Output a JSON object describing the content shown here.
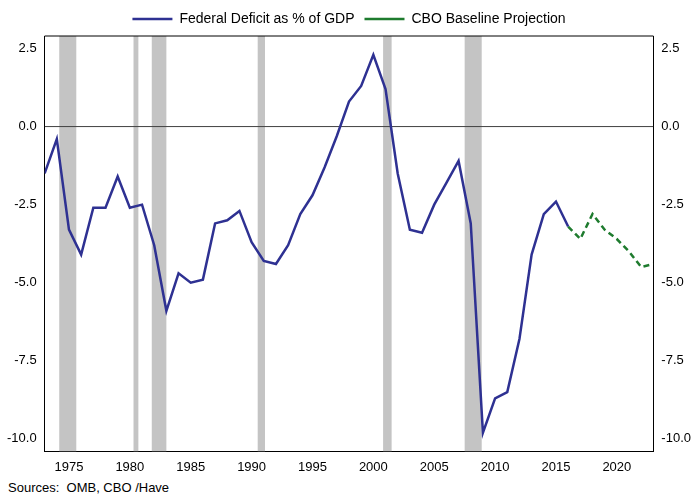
{
  "chart_data": {
    "type": "line",
    "source": "Sources:  OMB, CBO /Have",
    "x": [
      1973,
      1974,
      1975,
      1976,
      1977,
      1978,
      1979,
      1980,
      1981,
      1982,
      1983,
      1984,
      1985,
      1986,
      1987,
      1988,
      1989,
      1990,
      1991,
      1992,
      1993,
      1994,
      1995,
      1996,
      1997,
      1998,
      1999,
      2000,
      2001,
      2002,
      2003,
      2004,
      2005,
      2006,
      2007,
      2008,
      2009,
      2010,
      2011,
      2012,
      2013,
      2014,
      2015,
      2016,
      2017,
      2018,
      2019,
      2020,
      2021,
      2022,
      2023
    ],
    "series": [
      {
        "name": "Federal Deficit as % of GDP",
        "color": "#2e3192",
        "line_style": "solid",
        "values": [
          -1.5,
          -0.4,
          -3.3,
          -4.1,
          -2.6,
          -2.6,
          -1.6,
          -2.6,
          -2.5,
          -3.8,
          -5.9,
          -4.7,
          -5.0,
          -4.9,
          -3.1,
          -3.0,
          -2.7,
          -3.7,
          -4.3,
          -4.4,
          -3.8,
          -2.8,
          -2.2,
          -1.3,
          -0.3,
          0.8,
          1.3,
          2.3,
          1.2,
          -1.5,
          -3.3,
          -3.4,
          -2.5,
          -1.8,
          -1.1,
          -3.1,
          -9.8,
          -8.7,
          -8.5,
          -6.8,
          -4.1,
          -2.8,
          -2.4,
          -3.2,
          null,
          null,
          null,
          null,
          null,
          null,
          null
        ]
      },
      {
        "name": "CBO Baseline Projection",
        "color": "#1e7b2e",
        "line_style": "dashed",
        "values": [
          null,
          null,
          null,
          null,
          null,
          null,
          null,
          null,
          null,
          null,
          null,
          null,
          null,
          null,
          null,
          null,
          null,
          null,
          null,
          null,
          null,
          null,
          null,
          null,
          null,
          null,
          null,
          null,
          null,
          null,
          null,
          null,
          null,
          null,
          null,
          null,
          null,
          null,
          null,
          null,
          null,
          null,
          null,
          -3.2,
          -3.6,
          -2.8,
          -3.3,
          -3.6,
          -4.0,
          -4.5,
          -4.4
        ]
      }
    ],
    "recessions": [
      [
        1974.2,
        1975.6
      ],
      [
        1980.3,
        1980.7
      ],
      [
        1981.8,
        1983.0
      ],
      [
        1990.5,
        1991.1
      ],
      [
        2000.8,
        2001.5
      ],
      [
        2007.5,
        2008.9
      ]
    ],
    "xlim": [
      1973,
      2023
    ],
    "xticks": [
      1975,
      1980,
      1985,
      1990,
      1995,
      2000,
      2005,
      2010,
      2015,
      2020
    ],
    "ylim": [
      -10.4,
      2.9
    ],
    "yticks": [
      {
        "value": -10,
        "label": "-10.0"
      },
      -7.5,
      {
        "value": -5,
        "label": "-5.0"
      },
      -2.5,
      {
        "value": 0,
        "label": "0.0"
      },
      2.5
    ],
    "y2lim": [
      -10.4,
      2.9
    ],
    "y2ticks": [
      {
        "value": -10,
        "label": "-10.0"
      },
      -7.5,
      {
        "value": -5,
        "label": "-5.0"
      },
      -2.5,
      {
        "value": 0,
        "label": "0.0"
      },
      2.5
    ],
    "legend": "top",
    "grid": false
  }
}
